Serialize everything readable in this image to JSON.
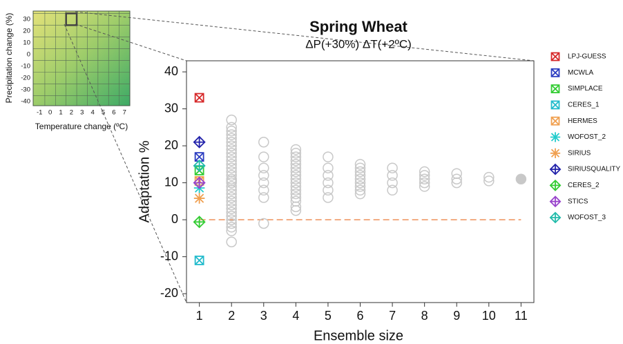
{
  "chart_data": {
    "type": "scatter",
    "title": "Spring Wheat",
    "subtitle": "ΔP(+30%) ΔT(+2ºC)",
    "x_label": "Ensemble size",
    "y_label": "Adaptation %",
    "xlim": [
      0.6,
      11.4
    ],
    "ylim": [
      -22.4,
      43
    ],
    "xticks": [
      1,
      2,
      3,
      4,
      5,
      6,
      7,
      8,
      9,
      10,
      11
    ],
    "yticks": [
      -20,
      -10,
      0,
      10,
      20,
      30,
      40
    ],
    "reference_line": {
      "value": 0,
      "color": "#f0a070"
    },
    "legend": "right",
    "series": [
      {
        "name": "LPJ-GUESS",
        "color": "#d62728",
        "marker": "square-x",
        "x": 1,
        "values": [
          33
        ]
      },
      {
        "name": "MCWLA",
        "color": "#2a3cc0",
        "marker": "square-x",
        "x": 1,
        "values": [
          17
        ]
      },
      {
        "name": "SIMPLACE",
        "color": "#33cc33",
        "marker": "square-x",
        "x": 1,
        "values": [
          13.3
        ]
      },
      {
        "name": "CERES_1",
        "color": "#22bbcc",
        "marker": "square-x",
        "x": 1,
        "values": [
          -11
        ]
      },
      {
        "name": "HERMES",
        "color": "#f0a050",
        "marker": "square-x",
        "x": 1,
        "values": [
          10.5
        ]
      },
      {
        "name": "WOFOST_2",
        "color": "#22cccc",
        "marker": "asterisk",
        "x": 1,
        "values": [
          8.6
        ]
      },
      {
        "name": "SIRIUS",
        "color": "#f0a050",
        "marker": "asterisk",
        "x": 1,
        "values": [
          5.8
        ]
      },
      {
        "name": "SIRIUSQUALITY",
        "color": "#2222aa",
        "marker": "diamond-plus",
        "x": 1,
        "values": [
          21
        ]
      },
      {
        "name": "CERES_2",
        "color": "#33cc33",
        "marker": "diamond-plus",
        "x": 1,
        "values": [
          -0.6
        ]
      },
      {
        "name": "STICS",
        "color": "#9944cc",
        "marker": "diamond-plus",
        "x": 1,
        "values": [
          10
        ]
      },
      {
        "name": "WOFOST_3",
        "color": "#22bbaa",
        "marker": "diamond-plus",
        "x": 1,
        "values": [
          14.6
        ]
      }
    ],
    "ensemble_color": "#c8c8c8",
    "ensembles": [
      {
        "x": 2,
        "values": [
          -6,
          -3,
          -2,
          -1,
          0,
          1,
          2,
          3,
          4,
          5,
          6,
          7,
          8,
          9,
          10,
          10.5,
          11,
          12,
          13,
          14,
          15,
          16,
          17,
          18,
          19,
          20,
          21,
          22,
          23,
          24,
          25,
          27
        ]
      },
      {
        "x": 3,
        "values": [
          -1,
          6,
          8,
          10,
          12,
          14,
          17,
          21
        ]
      },
      {
        "x": 4,
        "values": [
          2.5,
          3.5,
          5,
          6,
          7,
          8,
          9,
          10,
          11,
          12,
          13,
          14,
          15,
          16,
          17,
          18,
          19
        ]
      },
      {
        "x": 5,
        "values": [
          6,
          8,
          10,
          12,
          14,
          17
        ]
      },
      {
        "x": 6,
        "values": [
          7,
          8,
          9,
          10,
          11,
          12,
          13,
          14,
          15
        ]
      },
      {
        "x": 7,
        "values": [
          8,
          10,
          12,
          14
        ]
      },
      {
        "x": 8,
        "values": [
          9,
          10,
          11,
          12,
          13
        ]
      },
      {
        "x": 9,
        "values": [
          10,
          11,
          12.5
        ]
      },
      {
        "x": 10,
        "values": [
          10.5,
          11.5
        ]
      },
      {
        "x": 11,
        "values": [
          11
        ]
      }
    ],
    "inset": {
      "x_label": "Temperature change (ºC)",
      "y_label": "Precipitation change (%)",
      "xlim": [
        -1.6,
        7.5
      ],
      "ylim": [
        -43.5,
        37
      ],
      "xticks": [
        -1,
        0,
        1,
        2,
        3,
        4,
        5,
        6,
        7
      ],
      "yticks": [
        -40,
        -30,
        -20,
        -10,
        0,
        10,
        20,
        30
      ],
      "highlight": {
        "x": 2,
        "y": 30
      }
    }
  }
}
